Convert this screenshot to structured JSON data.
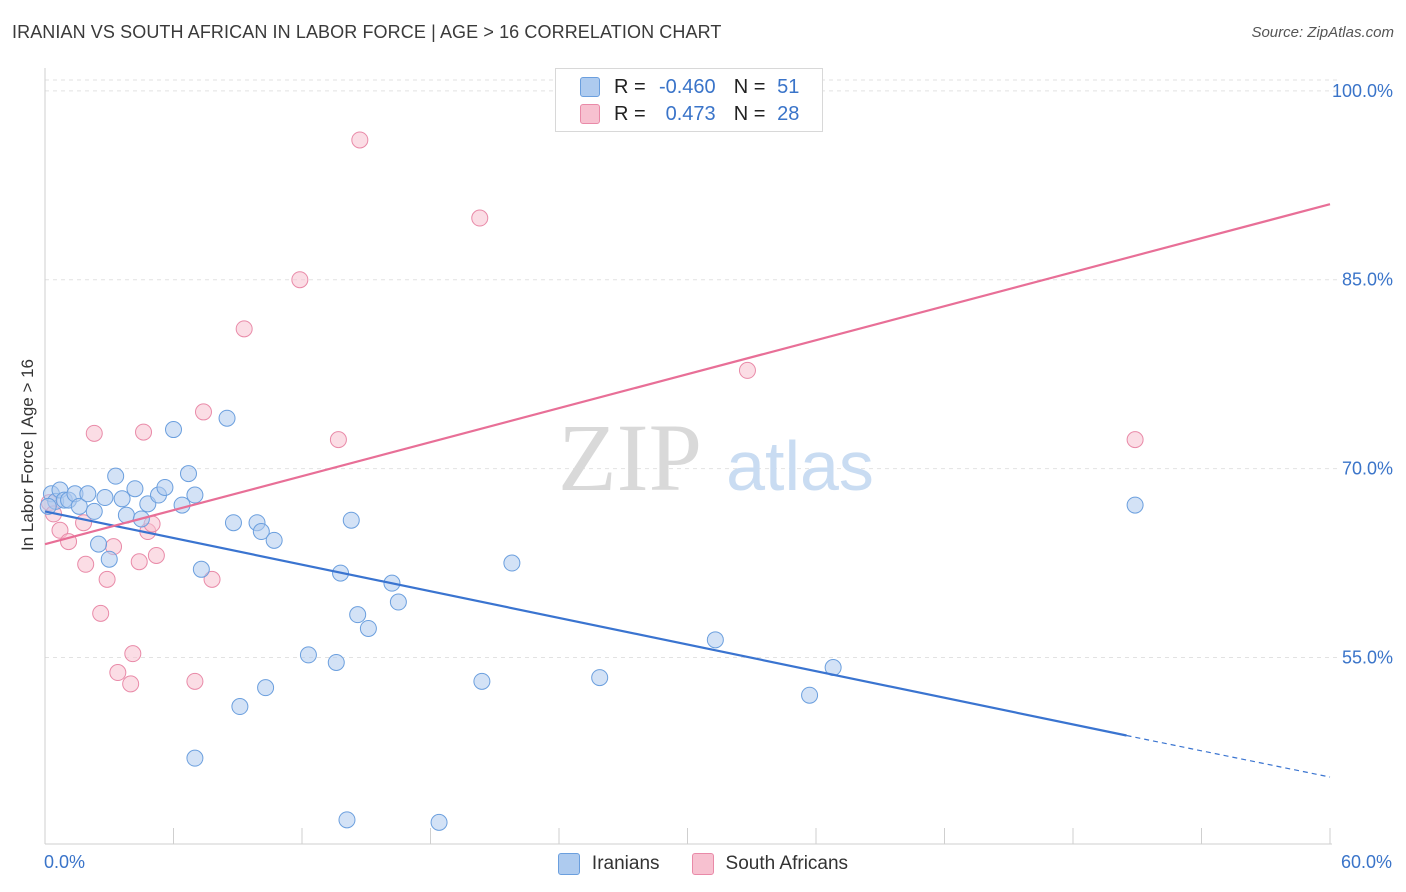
{
  "title": "IRANIAN VS SOUTH AFRICAN IN LABOR FORCE | AGE > 16 CORRELATION CHART",
  "source": "Source: ZipAtlas.com",
  "watermark": {
    "zip": "ZIP",
    "atlas": "atlas"
  },
  "legend": {
    "rows": [
      {
        "r_label": "R =",
        "r_value": "-0.460",
        "n_label": "N =",
        "n_value": "51",
        "color": "#aecbef",
        "border": "#6b9fde"
      },
      {
        "r_label": "R =",
        "r_value": "0.473",
        "n_label": "N =",
        "n_value": "28",
        "color": "#f7c1d0",
        "border": "#e98aa8"
      }
    ]
  },
  "bottom_legend": [
    {
      "label": "Iranians",
      "color": "#aecbef",
      "border": "#6b9fde"
    },
    {
      "label": "South Africans",
      "color": "#f7c1d0",
      "border": "#e98aa8"
    }
  ],
  "chart_data": {
    "type": "scatter",
    "title": "IRANIAN VS SOUTH AFRICAN IN LABOR FORCE | AGE > 16 CORRELATION CHART",
    "ylabel": "In Labor Force | Age > 16",
    "xlabel": "",
    "xlim": [
      0,
      60
    ],
    "ylim": [
      40.5,
      101.5
    ],
    "x_tick_labels": [
      "0.0%",
      "60.0%"
    ],
    "y_ticks": [
      55,
      70,
      85,
      100
    ],
    "y_tick_labels": [
      "55.0%",
      "70.0%",
      "85.0%",
      "100.0%"
    ],
    "grid": "horizontal dashed",
    "legend_position": "top-center",
    "series": [
      {
        "name": "Iranians",
        "color": "#6b9fde",
        "fill": "#aecbef",
        "trend": {
          "x": [
            0,
            50.5
          ],
          "y": [
            66.6,
            48.8
          ],
          "dashed_extension": {
            "x": [
              50.5,
              60
            ],
            "y": [
              48.8,
              45.5
            ]
          }
        },
        "points": [
          [
            0.3,
            68.0
          ],
          [
            0.5,
            67.4
          ],
          [
            0.7,
            68.3
          ],
          [
            0.9,
            67.5
          ],
          [
            1.1,
            67.5
          ],
          [
            1.4,
            68.0
          ],
          [
            1.6,
            67.0
          ],
          [
            2.0,
            68.0
          ],
          [
            2.3,
            66.6
          ],
          [
            2.5,
            64.0
          ],
          [
            2.8,
            67.7
          ],
          [
            3.0,
            62.8
          ],
          [
            3.3,
            69.4
          ],
          [
            3.6,
            67.6
          ],
          [
            3.8,
            66.3
          ],
          [
            4.2,
            68.4
          ],
          [
            4.5,
            66.0
          ],
          [
            4.8,
            67.2
          ],
          [
            5.3,
            67.9
          ],
          [
            5.6,
            68.5
          ],
          [
            6.0,
            73.1
          ],
          [
            6.4,
            67.1
          ],
          [
            6.7,
            69.6
          ],
          [
            7.0,
            67.9
          ],
          [
            7.3,
            62.0
          ],
          [
            8.5,
            74.0
          ],
          [
            8.8,
            65.7
          ],
          [
            9.1,
            51.1
          ],
          [
            9.9,
            65.7
          ],
          [
            10.1,
            65.0
          ],
          [
            10.3,
            52.6
          ],
          [
            10.7,
            64.3
          ],
          [
            12.3,
            55.2
          ],
          [
            13.6,
            54.6
          ],
          [
            13.8,
            61.7
          ],
          [
            14.1,
            42.1
          ],
          [
            14.3,
            65.9
          ],
          [
            14.6,
            58.4
          ],
          [
            15.1,
            57.3
          ],
          [
            16.2,
            60.9
          ],
          [
            16.5,
            59.4
          ],
          [
            18.4,
            41.9
          ],
          [
            20.4,
            53.1
          ],
          [
            21.8,
            62.5
          ],
          [
            25.9,
            53.4
          ],
          [
            31.3,
            56.4
          ],
          [
            35.7,
            52.0
          ],
          [
            36.8,
            54.2
          ],
          [
            50.9,
            67.1
          ],
          [
            0.15,
            67.0
          ],
          [
            7.0,
            47.0
          ]
        ]
      },
      {
        "name": "South Africans",
        "color": "#e86f97",
        "fill": "#f7c1d0",
        "trend": {
          "x": [
            0,
            60
          ],
          "y": [
            64.0,
            91.0
          ]
        },
        "points": [
          [
            0.2,
            67.3
          ],
          [
            0.4,
            66.4
          ],
          [
            0.7,
            65.1
          ],
          [
            1.1,
            64.2
          ],
          [
            1.8,
            65.7
          ],
          [
            1.9,
            62.4
          ],
          [
            2.3,
            72.8
          ],
          [
            2.6,
            58.5
          ],
          [
            2.9,
            61.2
          ],
          [
            3.2,
            63.8
          ],
          [
            3.4,
            53.8
          ],
          [
            4.0,
            52.9
          ],
          [
            4.1,
            55.3
          ],
          [
            4.4,
            62.6
          ],
          [
            4.6,
            72.9
          ],
          [
            4.8,
            65.0
          ],
          [
            5.0,
            65.6
          ],
          [
            5.2,
            63.1
          ],
          [
            7.0,
            53.1
          ],
          [
            7.4,
            74.5
          ],
          [
            7.8,
            61.2
          ],
          [
            9.3,
            81.1
          ],
          [
            11.9,
            85.0
          ],
          [
            13.7,
            72.3
          ],
          [
            14.7,
            96.1
          ],
          [
            20.3,
            89.9
          ],
          [
            32.8,
            77.8
          ],
          [
            50.9,
            72.3
          ]
        ]
      }
    ]
  }
}
